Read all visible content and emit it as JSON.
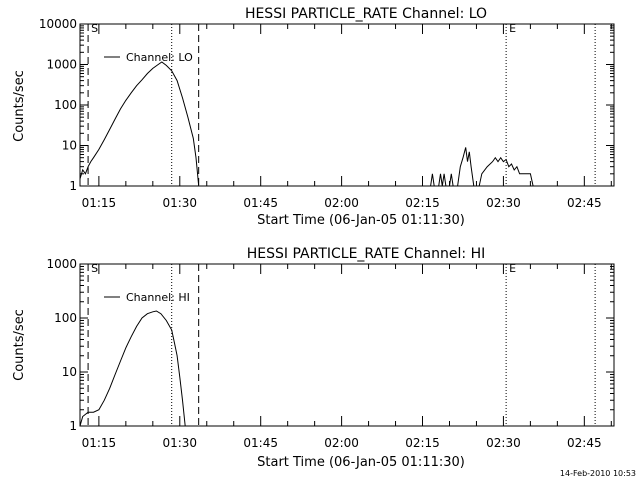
{
  "footer_timestamp": "14-Feb-2010 10:53",
  "chart_data": [
    {
      "type": "line",
      "title": "HESSI PARTICLE_RATE Channel: LO",
      "xlabel": "Start Time (06-Jan-05 01:11:30)",
      "ylabel": "Counts/sec",
      "y_scale": "log",
      "ylim": [
        1,
        10000
      ],
      "y_ticks": [
        {
          "v": 1,
          "label": "1"
        },
        {
          "v": 10,
          "label": "10"
        },
        {
          "v": 100,
          "label": "100"
        },
        {
          "v": 1000,
          "label": "1000"
        },
        {
          "v": 10000,
          "label": "10000"
        }
      ],
      "xlim": [
        "01:11:30",
        "02:50:30"
      ],
      "x_ticks": [
        "01:15",
        "01:30",
        "01:45",
        "02:00",
        "02:15",
        "02:30",
        "02:45"
      ],
      "legend": {
        "label": "Channel: LO",
        "placement": "top-left"
      },
      "grid": false,
      "markers": [
        {
          "time": "01:13:00",
          "style": "dashed",
          "label": "S"
        },
        {
          "time": "01:28:30",
          "style": "dotted",
          "label": ""
        },
        {
          "time": "01:33:30",
          "style": "dashed",
          "label": ""
        },
        {
          "time": "02:30:30",
          "style": "dotted",
          "label": "E"
        },
        {
          "time": "02:47:00",
          "style": "dotted",
          "label": ""
        }
      ],
      "series": [
        {
          "segments": [
            [
              [
                "01:11:30",
                1.5
              ],
              [
                "01:12:00",
                2.5
              ],
              [
                "01:12:30",
                2
              ],
              [
                "01:13:00",
                3
              ],
              [
                "01:13:30",
                4
              ],
              [
                "01:14:00",
                5
              ],
              [
                "01:15:00",
                8
              ],
              [
                "01:16:00",
                14
              ],
              [
                "01:17:00",
                25
              ],
              [
                "01:18:00",
                45
              ],
              [
                "01:19:00",
                80
              ],
              [
                "01:20:00",
                130
              ],
              [
                "01:21:00",
                200
              ],
              [
                "01:22:00",
                300
              ],
              [
                "01:23:00",
                420
              ],
              [
                "01:24:00",
                600
              ],
              [
                "01:25:00",
                800
              ],
              [
                "01:26:00",
                1000
              ],
              [
                "01:26:40",
                1150
              ],
              [
                "01:27:30",
                950
              ],
              [
                "01:28:30",
                700
              ],
              [
                "01:29:30",
                400
              ],
              [
                "01:30:30",
                150
              ],
              [
                "01:31:30",
                50
              ],
              [
                "01:32:30",
                15
              ],
              [
                "01:33:00",
                5
              ],
              [
                "01:33:30",
                1
              ]
            ],
            [
              [
                "02:16:30",
                1
              ],
              [
                "02:16:50",
                2
              ],
              [
                "02:17:10",
                1
              ]
            ],
            [
              [
                "02:18:00",
                1
              ],
              [
                "02:18:20",
                2
              ],
              [
                "02:18:40",
                1
              ],
              [
                "02:19:00",
                2
              ],
              [
                "02:19:20",
                1
              ]
            ],
            [
              [
                "02:20:00",
                1
              ],
              [
                "02:20:20",
                2
              ],
              [
                "02:20:40",
                1
              ]
            ],
            [
              [
                "02:21:30",
                1
              ],
              [
                "02:22:00",
                3
              ],
              [
                "02:22:30",
                5
              ],
              [
                "02:23:00",
                9
              ],
              [
                "02:23:20",
                4
              ],
              [
                "02:23:40",
                7
              ],
              [
                "02:24:00",
                3
              ],
              [
                "02:24:30",
                1
              ]
            ],
            [
              [
                "02:25:30",
                1
              ],
              [
                "02:26:00",
                2
              ],
              [
                "02:27:00",
                3
              ],
              [
                "02:28:00",
                4
              ],
              [
                "02:28:30",
                5
              ],
              [
                "02:29:00",
                4
              ],
              [
                "02:29:30",
                5
              ],
              [
                "02:30:00",
                4
              ],
              [
                "02:30:30",
                4.5
              ],
              [
                "02:31:00",
                3
              ],
              [
                "02:31:30",
                3.5
              ],
              [
                "02:32:00",
                2.5
              ],
              [
                "02:32:30",
                3
              ],
              [
                "02:33:00",
                2
              ],
              [
                "02:34:00",
                2
              ],
              [
                "02:35:00",
                2
              ],
              [
                "02:35:30",
                1
              ]
            ]
          ]
        }
      ]
    },
    {
      "type": "line",
      "title": "HESSI PARTICLE_RATE Channel: HI",
      "xlabel": "Start Time (06-Jan-05 01:11:30)",
      "ylabel": "Counts/sec",
      "y_scale": "log",
      "ylim": [
        1,
        1000
      ],
      "y_ticks": [
        {
          "v": 1,
          "label": "1"
        },
        {
          "v": 10,
          "label": "10"
        },
        {
          "v": 100,
          "label": "100"
        },
        {
          "v": 1000,
          "label": "1000"
        }
      ],
      "xlim": [
        "01:11:30",
        "02:50:30"
      ],
      "x_ticks": [
        "01:15",
        "01:30",
        "01:45",
        "02:00",
        "02:15",
        "02:30",
        "02:45"
      ],
      "legend": {
        "label": "Channel: HI",
        "placement": "top-left"
      },
      "grid": false,
      "markers": [
        {
          "time": "01:13:00",
          "style": "dashed",
          "label": "S"
        },
        {
          "time": "01:28:30",
          "style": "dotted",
          "label": ""
        },
        {
          "time": "01:33:30",
          "style": "dashed",
          "label": ""
        },
        {
          "time": "02:30:30",
          "style": "dotted",
          "label": "E"
        },
        {
          "time": "02:47:00",
          "style": "dotted",
          "label": ""
        }
      ],
      "series": [
        {
          "segments": [
            [
              [
                "01:11:30",
                1
              ],
              [
                "01:12:00",
                1.5
              ],
              [
                "01:13:00",
                1.8
              ],
              [
                "01:14:00",
                1.8
              ],
              [
                "01:15:00",
                2
              ],
              [
                "01:16:00",
                3
              ],
              [
                "01:17:00",
                5
              ],
              [
                "01:18:00",
                9
              ],
              [
                "01:19:00",
                16
              ],
              [
                "01:20:00",
                28
              ],
              [
                "01:21:00",
                45
              ],
              [
                "01:22:00",
                70
              ],
              [
                "01:23:00",
                100
              ],
              [
                "01:24:00",
                120
              ],
              [
                "01:25:00",
                130
              ],
              [
                "01:25:40",
                135
              ],
              [
                "01:26:30",
                120
              ],
              [
                "01:27:30",
                90
              ],
              [
                "01:28:30",
                60
              ],
              [
                "01:29:00",
                35
              ],
              [
                "01:29:30",
                20
              ],
              [
                "01:30:00",
                8
              ],
              [
                "01:30:30",
                3
              ],
              [
                "01:31:00",
                1
              ]
            ]
          ]
        }
      ]
    }
  ]
}
